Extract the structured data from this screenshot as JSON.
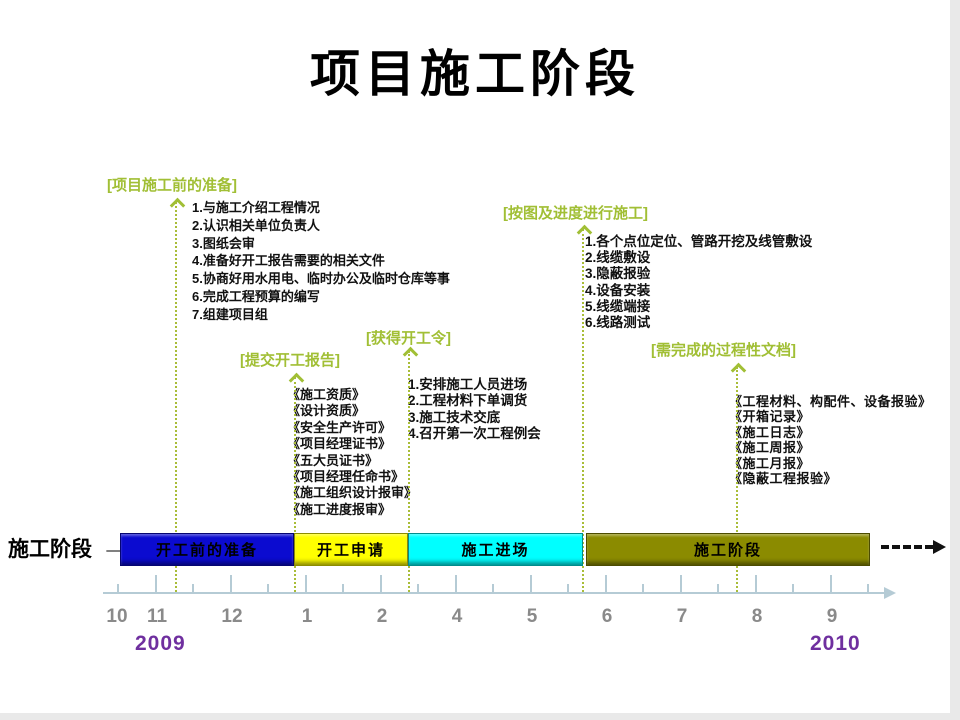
{
  "title": "项目施工阶段",
  "phase_axis": {
    "label": "施工阶段",
    "arrow_icon": "→"
  },
  "annotations": [
    {
      "header": "[项目施工前的准备]",
      "items": [
        "1.与施工介绍工程情况",
        "2.认识相关单位负责人",
        "3.图纸会审",
        "4.准备好开工报告需要的相关文件",
        "5.协商好用水用电、临时办公及临时仓库等事",
        "6.完成工程预算的编写",
        "7.组建项目组"
      ]
    },
    {
      "header": "[提交开工报告]",
      "items": [
        "《施工资质》",
        "《设计资质》",
        "《安全生产许可》",
        "《项目经理证书》",
        "《五大员证书》",
        "《项目经理任命书》",
        "《施工组织设计报审》",
        "《施工进度报审》"
      ]
    },
    {
      "header": "[获得开工令]",
      "items": [
        "1.安排施工人员进场",
        "2.工程材料下单调货",
        "3.施工技术交底",
        "4.召开第一次工程例会"
      ]
    },
    {
      "header": "[按图及进度进行施工]",
      "items": [
        "1.各个点位定位、管路开挖及线管敷设",
        "2.线缆敷设",
        "3.隐蔽报验",
        "4.设备安装",
        "5.线缆端接",
        "6.线路测试"
      ]
    },
    {
      "header": "[需完成的过程性文档]",
      "items": [
        "《工程材料、构配件、设备报验》",
        "《开箱记录》",
        "《施工日志》",
        "《施工周报》",
        "《施工月报》",
        "《隐蔽工程报验》"
      ]
    }
  ],
  "timeline": {
    "bars": [
      {
        "label": "开工前的准备",
        "color": "#0b0bd0"
      },
      {
        "label": "开工申请",
        "color": "#ffff00"
      },
      {
        "label": "施工进场",
        "color": "#00ffff"
      },
      {
        "label": "施工阶段",
        "color": "#8b8b00"
      }
    ],
    "months": [
      "10",
      "11",
      "12",
      "1",
      "2",
      "4",
      "5",
      "6",
      "7",
      "8",
      "9"
    ],
    "year_left": "2009",
    "year_right": "2010"
  },
  "colors": {
    "accent_green": "#a1bf35",
    "year_purple": "#6f2f9f",
    "axis_blue": "#b5cbd5",
    "month_gray": "#8a8a8a"
  }
}
